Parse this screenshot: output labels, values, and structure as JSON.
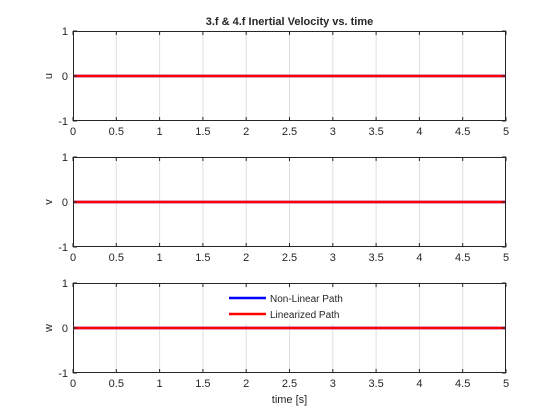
{
  "chart_data": [
    {
      "type": "line",
      "title": "3.f & 4.f Inertial Velocity vs. time",
      "xlabel": "",
      "ylabel": "u",
      "xlim": [
        0,
        5
      ],
      "ylim": [
        -1,
        1
      ],
      "x_ticks": [
        "0",
        "0.5",
        "1",
        "1.5",
        "2",
        "2.5",
        "3",
        "3.5",
        "4",
        "4.5",
        "5"
      ],
      "y_ticks": [
        "-1",
        "0",
        "1"
      ],
      "grid": "x-only",
      "series": [
        {
          "color": "#0000ff",
          "x": [
            0,
            5
          ],
          "y": [
            0,
            0
          ]
        },
        {
          "color": "#ff0000",
          "x": [
            0,
            5
          ],
          "y": [
            0,
            0
          ]
        }
      ]
    },
    {
      "type": "line",
      "title": "",
      "xlabel": "",
      "ylabel": "v",
      "xlim": [
        0,
        5
      ],
      "ylim": [
        -1,
        1
      ],
      "x_ticks": [
        "0",
        "0.5",
        "1",
        "1.5",
        "2",
        "2.5",
        "3",
        "3.5",
        "4",
        "4.5",
        "5"
      ],
      "y_ticks": [
        "-1",
        "0",
        "1"
      ],
      "grid": "x-only",
      "series": [
        {
          "color": "#0000ff",
          "x": [
            0,
            5
          ],
          "y": [
            0,
            0
          ]
        },
        {
          "color": "#ff0000",
          "x": [
            0,
            5
          ],
          "y": [
            0,
            0
          ]
        }
      ]
    },
    {
      "type": "line",
      "title": "",
      "xlabel": "time [s]",
      "ylabel": "w",
      "xlim": [
        0,
        5
      ],
      "ylim": [
        -1,
        1
      ],
      "x_ticks": [
        "0",
        "0.5",
        "1",
        "1.5",
        "2",
        "2.5",
        "3",
        "3.5",
        "4",
        "4.5",
        "5"
      ],
      "y_ticks": [
        "-1",
        "0",
        "1"
      ],
      "grid": "x-only",
      "legend": {
        "placement": "top-center",
        "entries": [
          {
            "name": "Non-Linear Path",
            "color": "#0000ff"
          },
          {
            "name": "Linearized Path",
            "color": "#ff0000"
          }
        ]
      },
      "series": [
        {
          "name": "Non-Linear Path",
          "color": "#0000ff",
          "x": [
            0,
            5
          ],
          "y": [
            0,
            0
          ]
        },
        {
          "name": "Linearized Path",
          "color": "#ff0000",
          "x": [
            0,
            5
          ],
          "y": [
            0,
            0
          ]
        }
      ]
    }
  ]
}
